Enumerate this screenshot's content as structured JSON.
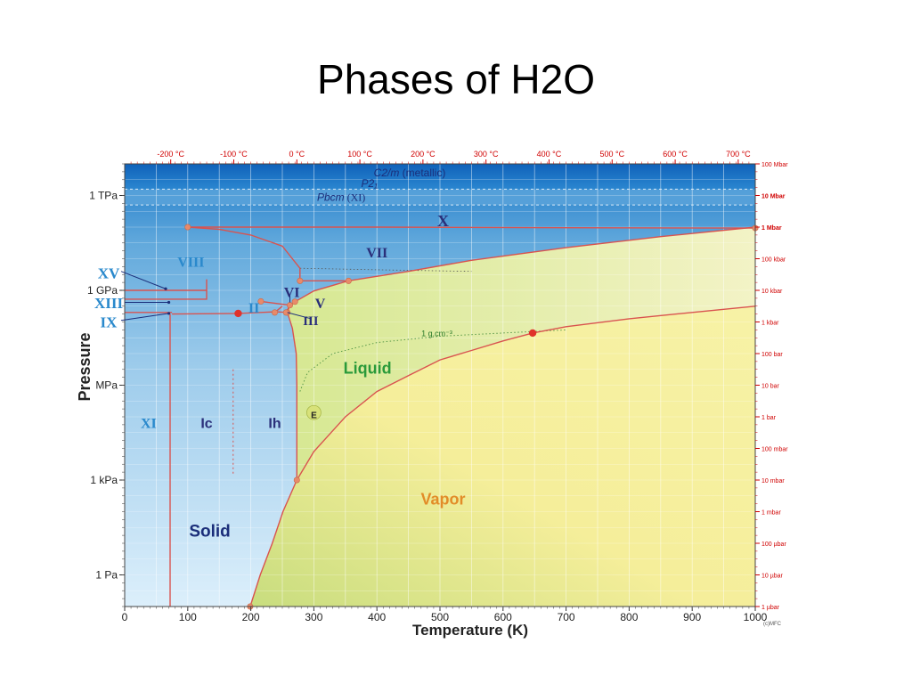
{
  "slide": {
    "title": "Phases of H2O"
  },
  "chart_data": {
    "type": "phase-diagram",
    "xlabel": "Temperature (K)",
    "ylabel": "Pressure",
    "xlim": [
      0,
      1000
    ],
    "ylim_log10_Pa": [
      -1,
      13
    ],
    "x_ticks": [
      0,
      100,
      200,
      300,
      400,
      500,
      600,
      700,
      800,
      900,
      1000
    ],
    "y_ticks_left": [
      {
        "label": "1 TPa",
        "log10_pa": 12
      },
      {
        "label": "1 GPa",
        "log10_pa": 9
      },
      {
        "label": "MPa",
        "log10_pa": 6
      },
      {
        "label": "1 kPa",
        "log10_pa": 3
      },
      {
        "label": "1 Pa",
        "log10_pa": 0
      }
    ],
    "top_celsius_ticks": [
      {
        "label": "-200 °C",
        "kelvin": 73
      },
      {
        "label": "-100 °C",
        "kelvin": 173
      },
      {
        "label": "0 °C",
        "kelvin": 273
      },
      {
        "label": "100 °C",
        "kelvin": 373
      },
      {
        "label": "200 °C",
        "kelvin": 473
      },
      {
        "label": "300 °C",
        "kelvin": 573
      },
      {
        "label": "400 °C",
        "kelvin": 673
      },
      {
        "label": "500 °C",
        "kelvin": 773
      },
      {
        "label": "600 °C",
        "kelvin": 873
      },
      {
        "label": "700 °C",
        "kelvin": 973
      }
    ],
    "right_ticks": [
      {
        "label": "100 Mbar",
        "log10_pa": 13
      },
      {
        "label": "10 Mbar",
        "log10_pa": 12
      },
      {
        "label": "1 Mbar",
        "log10_pa": 11
      },
      {
        "label": "100 kbar",
        "log10_pa": 10
      },
      {
        "label": "10 kbar",
        "log10_pa": 9
      },
      {
        "label": "1 kbar",
        "log10_pa": 8
      },
      {
        "label": "100 bar",
        "log10_pa": 7
      },
      {
        "label": "10 bar",
        "log10_pa": 6
      },
      {
        "label": "1 bar",
        "log10_pa": 5
      },
      {
        "label": "100 mbar",
        "log10_pa": 4
      },
      {
        "label": "10 mbar",
        "log10_pa": 3
      },
      {
        "label": "1 mbar",
        "log10_pa": 2
      },
      {
        "label": "100 µbar",
        "log10_pa": 1
      },
      {
        "label": "10 µbar",
        "log10_pa": 0
      },
      {
        "label": "1 µbar",
        "log10_pa": -1
      }
    ],
    "regions": [
      {
        "name": "C2/m",
        "suffix": " (metallic)",
        "t": 395,
        "log10_pa": 12.73
      },
      {
        "name": "P2₁",
        "suffix": "",
        "t": 375,
        "log10_pa": 12.39
      },
      {
        "name": "Pbcm",
        "suffix": " (XI)",
        "t": 305,
        "log10_pa": 11.95
      },
      {
        "name": "X",
        "suffix": "",
        "t": 505,
        "log10_pa": 11.2
      },
      {
        "name": "VII",
        "suffix": "",
        "t": 400,
        "log10_pa": 10.2
      },
      {
        "name": "VIII",
        "suffix": "",
        "t": 105,
        "log10_pa": 9.9
      },
      {
        "name": "VI",
        "suffix": "",
        "t": 265,
        "log10_pa": 8.95
      },
      {
        "name": "V",
        "suffix": "",
        "t": 310,
        "log10_pa": 8.6
      },
      {
        "name": "III",
        "suffix": "",
        "t": 295,
        "log10_pa": 8.05
      },
      {
        "name": "II",
        "suffix": "",
        "t": 205,
        "log10_pa": 8.45
      },
      {
        "name": "XV",
        "suffix": "",
        "t": -30,
        "log10_pa": 9.55
      },
      {
        "name": "XIII",
        "suffix": "",
        "t": -30,
        "log10_pa": 8.6
      },
      {
        "name": "IX",
        "suffix": "",
        "t": -30,
        "log10_pa": 8.0
      },
      {
        "name": "XI",
        "suffix": "",
        "t": 38,
        "log10_pa": 4.8
      },
      {
        "name": "Ic",
        "suffix": "",
        "t": 130,
        "log10_pa": 4.8
      },
      {
        "name": "Ih",
        "suffix": "",
        "t": 238,
        "log10_pa": 4.8
      },
      {
        "name": "E",
        "suffix": "",
        "t": 300,
        "log10_pa": 5.05
      },
      {
        "name": "Liquid",
        "suffix": "",
        "t": 385,
        "log10_pa": 6.55
      },
      {
        "name": "Vapor",
        "suffix": "",
        "t": 505,
        "log10_pa": 2.4
      },
      {
        "name": "Solid",
        "suffix": "",
        "t": 135,
        "log10_pa": 1.4
      }
    ],
    "annotations": [
      {
        "text": "1 g.cm⁻³",
        "t": 495,
        "log10_pa": 7.55
      }
    ],
    "credit": "(c)MFC",
    "boundaries": [
      {
        "name": "sublimation",
        "points": [
          [
            199,
            -1
          ],
          [
            215,
            0
          ],
          [
            234,
            1
          ],
          [
            251,
            2
          ],
          [
            273,
            3
          ]
        ]
      },
      {
        "name": "vaporization",
        "points": [
          [
            273,
            3
          ],
          [
            300,
            3.9
          ],
          [
            350,
            5
          ],
          [
            400,
            5.8
          ],
          [
            450,
            6.3
          ],
          [
            500,
            6.8
          ],
          [
            550,
            7.1
          ],
          [
            600,
            7.4
          ],
          [
            647,
            7.65
          ],
          [
            700,
            7.85
          ],
          [
            800,
            8.1
          ],
          [
            900,
            8.3
          ],
          [
            1000,
            8.5
          ]
        ]
      },
      {
        "name": "melting-Ih",
        "points": [
          [
            273,
            3
          ],
          [
            273,
            6
          ],
          [
            272,
            7
          ],
          [
            266,
            7.8
          ],
          [
            258,
            8.3
          ]
        ]
      },
      {
        "name": "Ih-II",
        "points": [
          [
            258,
            8.3
          ],
          [
            240,
            8.32
          ],
          [
            180,
            8.27
          ],
          [
            75,
            8.25
          ]
        ]
      },
      {
        "name": "II-III",
        "points": [
          [
            238,
            8.3
          ],
          [
            250,
            8.5
          ]
        ]
      },
      {
        "name": "III-V",
        "points": [
          [
            258,
            8.3
          ],
          [
            262,
            8.53
          ]
        ]
      },
      {
        "name": "II-V",
        "points": [
          [
            216,
            8.65
          ],
          [
            262,
            8.53
          ]
        ]
      },
      {
        "name": "V-melt",
        "points": [
          [
            256,
            8.3
          ],
          [
            262,
            8.53
          ],
          [
            270,
            8.64
          ]
        ]
      },
      {
        "name": "VI-melt",
        "points": [
          [
            270,
            8.64
          ],
          [
            300,
            8.98
          ],
          [
            355,
            9.3
          ]
        ]
      },
      {
        "name": "VII-melt",
        "points": [
          [
            355,
            9.3
          ],
          [
            450,
            9.6
          ],
          [
            550,
            9.95
          ],
          [
            700,
            10.35
          ],
          [
            850,
            10.7
          ],
          [
            1000,
            11.0
          ]
        ]
      },
      {
        "name": "VI-VII",
        "points": [
          [
            278,
            9.3
          ],
          [
            355,
            9.3
          ]
        ]
      },
      {
        "name": "VI-VIII",
        "points": [
          [
            278,
            9.3
          ],
          [
            278,
            9.7
          ],
          [
            250,
            10.4
          ],
          [
            200,
            10.75
          ],
          [
            150,
            10.93
          ],
          [
            100,
            11.0
          ]
        ]
      },
      {
        "name": "VII-X",
        "points": [
          [
            100,
            11.0
          ],
          [
            400,
            11.0
          ],
          [
            700,
            10.98
          ],
          [
            1000,
            10.97
          ]
        ]
      },
      {
        "name": "XV",
        "points": [
          [
            0,
            9.0
          ],
          [
            130,
            9.0
          ],
          [
            130,
            9.35
          ]
        ]
      },
      {
        "name": "XIII",
        "points": [
          [
            0,
            8.72
          ],
          [
            130,
            8.72
          ],
          [
            130,
            9.0
          ]
        ]
      },
      {
        "name": "II-IX",
        "points": [
          [
            0,
            8.3
          ],
          [
            75,
            8.3
          ]
        ]
      },
      {
        "name": "XI-Ih",
        "points": [
          [
            72,
            8.25
          ],
          [
            72,
            -1
          ]
        ]
      }
    ],
    "triple_points": [
      [
        199,
        -1
      ],
      [
        273,
        3
      ],
      [
        258,
        8.3
      ],
      [
        238,
        8.3
      ],
      [
        256,
        8.3
      ],
      [
        262,
        8.53
      ],
      [
        216,
        8.65
      ],
      [
        270,
        8.64
      ],
      [
        355,
        9.3
      ],
      [
        278,
        9.3
      ],
      [
        100,
        11.0
      ],
      [
        1000,
        10.97
      ]
    ],
    "critical_points": [
      [
        647,
        7.65
      ],
      [
        180,
        8.27
      ]
    ],
    "colors": {
      "solid_light": "#d6ecfa",
      "solid_dark": "#6fb3e2",
      "liquid": "#e3ee9f",
      "vapor": "#f5f18d",
      "boundary": "#d9534f",
      "critical": "#e0322b",
      "phase_dark": "#2a2f7a",
      "phase_light": "#2a89cc",
      "liquid_text": "#2a9a3a",
      "vapor_text": "#e28c28",
      "top_axis": "#d00000"
    }
  }
}
